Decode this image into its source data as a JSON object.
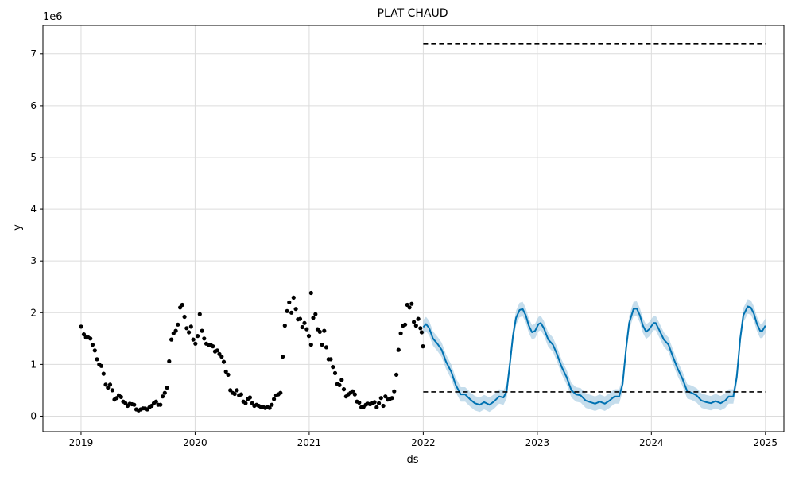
{
  "chart_data": {
    "type": "line",
    "title": "PLAT CHAUD",
    "xlabel": "ds",
    "ylabel": "y",
    "y_scale_label": "1e6",
    "xlim": [
      "2018-09-01",
      "2025-03-01"
    ],
    "ylim": [
      -0.3,
      7.55
    ],
    "x_ticks": [
      "2019",
      "2020",
      "2021",
      "2022",
      "2023",
      "2024",
      "2025"
    ],
    "y_ticks": [
      "0",
      "1",
      "2",
      "3",
      "4",
      "5",
      "6",
      "7"
    ],
    "grid": true,
    "series": [
      {
        "kind": "observed",
        "color": "#000000",
        "points": [
          [
            "2019-01-01",
            1.73
          ],
          [
            "2019-01-10",
            1.58
          ],
          [
            "2019-01-17",
            1.52
          ],
          [
            "2019-01-24",
            1.52
          ],
          [
            "2019-01-31",
            1.5
          ],
          [
            "2019-02-07",
            1.38
          ],
          [
            "2019-02-14",
            1.27
          ],
          [
            "2019-02-21",
            1.1
          ],
          [
            "2019-02-28",
            1.0
          ],
          [
            "2019-03-07",
            0.97
          ],
          [
            "2019-03-14",
            0.82
          ],
          [
            "2019-03-21",
            0.61
          ],
          [
            "2019-03-28",
            0.55
          ],
          [
            "2019-04-04",
            0.61
          ],
          [
            "2019-04-11",
            0.5
          ],
          [
            "2019-04-18",
            0.32
          ],
          [
            "2019-04-25",
            0.35
          ],
          [
            "2019-05-02",
            0.4
          ],
          [
            "2019-05-09",
            0.37
          ],
          [
            "2019-05-16",
            0.28
          ],
          [
            "2019-05-23",
            0.25
          ],
          [
            "2019-05-30",
            0.2
          ],
          [
            "2019-06-06",
            0.24
          ],
          [
            "2019-06-13",
            0.23
          ],
          [
            "2019-06-20",
            0.22
          ],
          [
            "2019-06-27",
            0.13
          ],
          [
            "2019-07-04",
            0.11
          ],
          [
            "2019-07-11",
            0.13
          ],
          [
            "2019-07-18",
            0.15
          ],
          [
            "2019-07-25",
            0.15
          ],
          [
            "2019-08-01",
            0.13
          ],
          [
            "2019-08-08",
            0.17
          ],
          [
            "2019-08-15",
            0.2
          ],
          [
            "2019-08-22",
            0.25
          ],
          [
            "2019-08-29",
            0.28
          ],
          [
            "2019-09-05",
            0.22
          ],
          [
            "2019-09-12",
            0.22
          ],
          [
            "2019-09-19",
            0.38
          ],
          [
            "2019-09-26",
            0.45
          ],
          [
            "2019-10-03",
            0.55
          ],
          [
            "2019-10-10",
            1.06
          ],
          [
            "2019-10-17",
            1.48
          ],
          [
            "2019-10-24",
            1.6
          ],
          [
            "2019-10-31",
            1.65
          ],
          [
            "2019-11-07",
            1.77
          ],
          [
            "2019-11-14",
            2.1
          ],
          [
            "2019-11-21",
            2.15
          ],
          [
            "2019-11-28",
            1.92
          ],
          [
            "2019-12-05",
            1.7
          ],
          [
            "2019-12-12",
            1.62
          ],
          [
            "2019-12-19",
            1.73
          ],
          [
            "2019-12-26",
            1.48
          ],
          [
            "2020-01-02",
            1.4
          ],
          [
            "2020-01-09",
            1.55
          ],
          [
            "2020-01-16",
            1.97
          ],
          [
            "2020-01-23",
            1.65
          ],
          [
            "2020-01-30",
            1.5
          ],
          [
            "2020-02-06",
            1.4
          ],
          [
            "2020-02-13",
            1.38
          ],
          [
            "2020-02-20",
            1.38
          ],
          [
            "2020-02-27",
            1.35
          ],
          [
            "2020-03-05",
            1.25
          ],
          [
            "2020-03-12",
            1.27
          ],
          [
            "2020-03-19",
            1.2
          ],
          [
            "2020-03-26",
            1.15
          ],
          [
            "2020-04-02",
            1.05
          ],
          [
            "2020-04-09",
            0.86
          ],
          [
            "2020-04-16",
            0.8
          ],
          [
            "2020-04-23",
            0.5
          ],
          [
            "2020-04-30",
            0.45
          ],
          [
            "2020-05-07",
            0.43
          ],
          [
            "2020-05-14",
            0.5
          ],
          [
            "2020-05-21",
            0.4
          ],
          [
            "2020-05-28",
            0.42
          ],
          [
            "2020-06-04",
            0.28
          ],
          [
            "2020-06-11",
            0.25
          ],
          [
            "2020-06-18",
            0.33
          ],
          [
            "2020-06-25",
            0.36
          ],
          [
            "2020-07-02",
            0.25
          ],
          [
            "2020-07-09",
            0.2
          ],
          [
            "2020-07-16",
            0.22
          ],
          [
            "2020-07-23",
            0.2
          ],
          [
            "2020-07-30",
            0.18
          ],
          [
            "2020-08-06",
            0.18
          ],
          [
            "2020-08-13",
            0.16
          ],
          [
            "2020-08-20",
            0.18
          ],
          [
            "2020-08-27",
            0.16
          ],
          [
            "2020-09-03",
            0.22
          ],
          [
            "2020-09-10",
            0.33
          ],
          [
            "2020-09-17",
            0.4
          ],
          [
            "2020-09-24",
            0.42
          ],
          [
            "2020-10-01",
            0.45
          ],
          [
            "2020-10-08",
            1.15
          ],
          [
            "2020-10-15",
            1.75
          ],
          [
            "2020-10-22",
            2.03
          ],
          [
            "2020-10-29",
            2.2
          ],
          [
            "2020-11-05",
            2.0
          ],
          [
            "2020-11-12",
            2.29
          ],
          [
            "2020-11-19",
            2.07
          ],
          [
            "2020-11-26",
            1.87
          ],
          [
            "2020-12-03",
            1.88
          ],
          [
            "2020-12-10",
            1.72
          ],
          [
            "2020-12-17",
            1.8
          ],
          [
            "2020-12-24",
            1.68
          ],
          [
            "2020-12-31",
            1.55
          ],
          [
            "2021-01-07",
            1.38
          ],
          [
            "2021-01-07",
            2.38
          ],
          [
            "2021-01-14",
            1.9
          ],
          [
            "2021-01-21",
            1.97
          ],
          [
            "2021-01-28",
            1.68
          ],
          [
            "2021-02-04",
            1.63
          ],
          [
            "2021-02-11",
            1.38
          ],
          [
            "2021-02-18",
            1.65
          ],
          [
            "2021-02-25",
            1.33
          ],
          [
            "2021-03-04",
            1.1
          ],
          [
            "2021-03-11",
            1.1
          ],
          [
            "2021-03-18",
            0.95
          ],
          [
            "2021-03-25",
            0.83
          ],
          [
            "2021-04-01",
            0.62
          ],
          [
            "2021-04-08",
            0.6
          ],
          [
            "2021-04-15",
            0.7
          ],
          [
            "2021-04-22",
            0.52
          ],
          [
            "2021-04-29",
            0.38
          ],
          [
            "2021-05-06",
            0.42
          ],
          [
            "2021-05-13",
            0.45
          ],
          [
            "2021-05-20",
            0.48
          ],
          [
            "2021-05-27",
            0.42
          ],
          [
            "2021-06-03",
            0.28
          ],
          [
            "2021-06-10",
            0.26
          ],
          [
            "2021-06-17",
            0.17
          ],
          [
            "2021-06-24",
            0.18
          ],
          [
            "2021-07-01",
            0.22
          ],
          [
            "2021-07-08",
            0.24
          ],
          [
            "2021-07-15",
            0.23
          ],
          [
            "2021-07-22",
            0.25
          ],
          [
            "2021-07-29",
            0.27
          ],
          [
            "2021-08-05",
            0.17
          ],
          [
            "2021-08-12",
            0.25
          ],
          [
            "2021-08-19",
            0.35
          ],
          [
            "2021-08-26",
            0.2
          ],
          [
            "2021-09-02",
            0.38
          ],
          [
            "2021-09-09",
            0.32
          ],
          [
            "2021-09-16",
            0.33
          ],
          [
            "2021-09-23",
            0.35
          ],
          [
            "2021-09-30",
            0.48
          ],
          [
            "2021-10-07",
            0.8
          ],
          [
            "2021-10-14",
            1.28
          ],
          [
            "2021-10-21",
            1.6
          ],
          [
            "2021-10-28",
            1.75
          ],
          [
            "2021-11-04",
            1.77
          ],
          [
            "2021-11-11",
            2.15
          ],
          [
            "2021-11-18",
            2.1
          ],
          [
            "2021-11-25",
            2.17
          ],
          [
            "2021-12-02",
            1.82
          ],
          [
            "2021-12-09",
            1.75
          ],
          [
            "2021-12-16",
            1.88
          ],
          [
            "2021-12-23",
            1.7
          ],
          [
            "2021-12-27",
            1.62
          ],
          [
            "2021-12-31",
            1.35
          ]
        ]
      },
      {
        "kind": "forecast",
        "color": "#0072B2",
        "band_color": "#9fc6e0",
        "band_halfwidth": 0.14,
        "points": [
          [
            "2022-01-01",
            1.72
          ],
          [
            "2022-01-10",
            1.78
          ],
          [
            "2022-01-20",
            1.7
          ],
          [
            "2022-02-01",
            1.5
          ],
          [
            "2022-02-15",
            1.4
          ],
          [
            "2022-03-01",
            1.28
          ],
          [
            "2022-03-15",
            1.05
          ],
          [
            "2022-04-01",
            0.85
          ],
          [
            "2022-04-15",
            0.6
          ],
          [
            "2022-05-01",
            0.42
          ],
          [
            "2022-05-15",
            0.42
          ],
          [
            "2022-06-01",
            0.32
          ],
          [
            "2022-06-15",
            0.25
          ],
          [
            "2022-07-01",
            0.22
          ],
          [
            "2022-07-15",
            0.27
          ],
          [
            "2022-08-01",
            0.22
          ],
          [
            "2022-08-15",
            0.28
          ],
          [
            "2022-09-01",
            0.38
          ],
          [
            "2022-09-15",
            0.36
          ],
          [
            "2022-09-25",
            0.48
          ],
          [
            "2022-10-05",
            1.0
          ],
          [
            "2022-10-15",
            1.55
          ],
          [
            "2022-10-25",
            1.9
          ],
          [
            "2022-11-05",
            2.05
          ],
          [
            "2022-11-15",
            2.07
          ],
          [
            "2022-11-25",
            1.95
          ],
          [
            "2022-12-05",
            1.75
          ],
          [
            "2022-12-15",
            1.62
          ],
          [
            "2022-12-25",
            1.65
          ],
          [
            "2023-01-05",
            1.78
          ],
          [
            "2023-01-12",
            1.8
          ],
          [
            "2023-01-22",
            1.7
          ],
          [
            "2023-02-05",
            1.48
          ],
          [
            "2023-02-20",
            1.38
          ],
          [
            "2023-03-05",
            1.2
          ],
          [
            "2023-03-20",
            0.95
          ],
          [
            "2023-04-05",
            0.75
          ],
          [
            "2023-04-20",
            0.5
          ],
          [
            "2023-05-05",
            0.42
          ],
          [
            "2023-05-20",
            0.4
          ],
          [
            "2023-06-05",
            0.3
          ],
          [
            "2023-06-20",
            0.27
          ],
          [
            "2023-07-05",
            0.24
          ],
          [
            "2023-07-20",
            0.28
          ],
          [
            "2023-08-05",
            0.24
          ],
          [
            "2023-08-20",
            0.3
          ],
          [
            "2023-09-05",
            0.38
          ],
          [
            "2023-09-20",
            0.38
          ],
          [
            "2023-10-01",
            0.62
          ],
          [
            "2023-10-12",
            1.3
          ],
          [
            "2023-10-22",
            1.8
          ],
          [
            "2023-11-05",
            2.07
          ],
          [
            "2023-11-15",
            2.08
          ],
          [
            "2023-11-25",
            1.95
          ],
          [
            "2023-12-05",
            1.75
          ],
          [
            "2023-12-15",
            1.63
          ],
          [
            "2023-12-25",
            1.68
          ],
          [
            "2024-01-08",
            1.8
          ],
          [
            "2024-01-15",
            1.8
          ],
          [
            "2024-01-25",
            1.68
          ],
          [
            "2024-02-10",
            1.48
          ],
          [
            "2024-02-25",
            1.38
          ],
          [
            "2024-03-10",
            1.15
          ],
          [
            "2024-03-25",
            0.92
          ],
          [
            "2024-04-10",
            0.72
          ],
          [
            "2024-04-25",
            0.48
          ],
          [
            "2024-05-10",
            0.45
          ],
          [
            "2024-05-25",
            0.4
          ],
          [
            "2024-06-10",
            0.3
          ],
          [
            "2024-06-25",
            0.27
          ],
          [
            "2024-07-10",
            0.25
          ],
          [
            "2024-07-25",
            0.29
          ],
          [
            "2024-08-10",
            0.25
          ],
          [
            "2024-08-25",
            0.3
          ],
          [
            "2024-09-05",
            0.38
          ],
          [
            "2024-09-20",
            0.38
          ],
          [
            "2024-10-01",
            0.75
          ],
          [
            "2024-10-12",
            1.5
          ],
          [
            "2024-10-22",
            1.95
          ],
          [
            "2024-11-05",
            2.12
          ],
          [
            "2024-11-15",
            2.1
          ],
          [
            "2024-11-25",
            1.98
          ],
          [
            "2024-12-05",
            1.78
          ],
          [
            "2024-12-15",
            1.65
          ],
          [
            "2024-12-22",
            1.65
          ],
          [
            "2025-01-01",
            1.75
          ]
        ]
      },
      {
        "kind": "cap",
        "color": "#000000",
        "style": "dashed",
        "points": [
          [
            "2022-01-01",
            7.2
          ],
          [
            "2025-01-01",
            7.2
          ]
        ]
      },
      {
        "kind": "floor",
        "color": "#000000",
        "style": "dashed",
        "points": [
          [
            "2022-01-01",
            0.47
          ],
          [
            "2025-01-01",
            0.47
          ]
        ]
      }
    ]
  }
}
